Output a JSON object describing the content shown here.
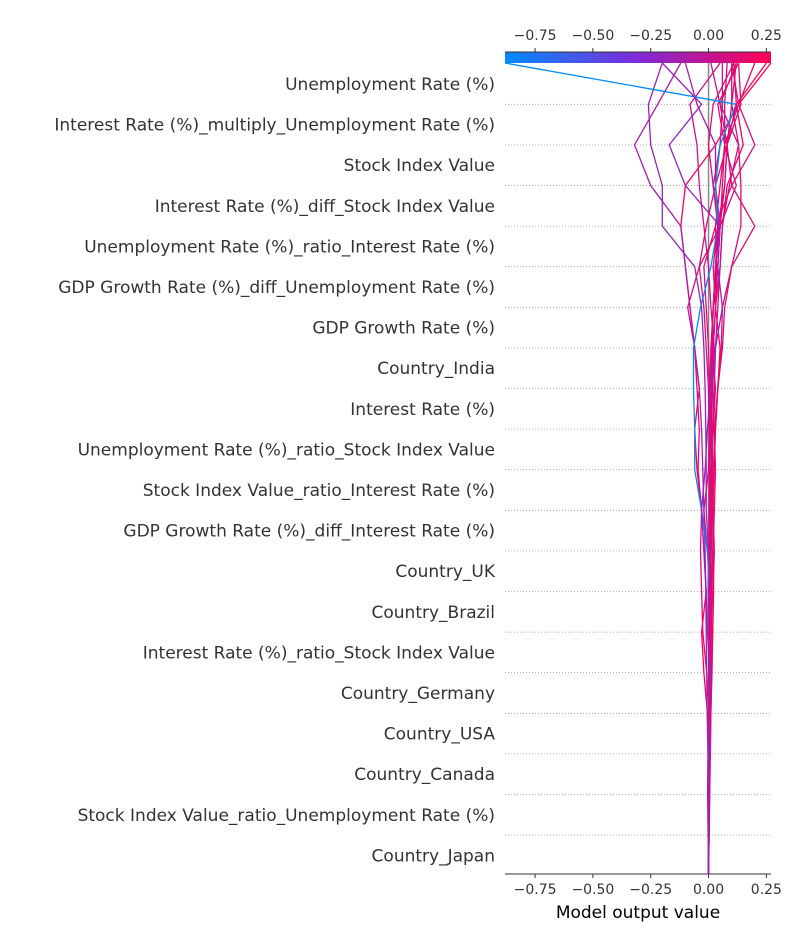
{
  "chart_data": {
    "type": "line",
    "title": "",
    "xlabel": "Model output value",
    "ylabel": "",
    "xlim": [
      -0.88,
      0.27
    ],
    "xticks": [
      -0.75,
      -0.5,
      -0.25,
      0.0,
      0.25
    ],
    "xtick_labels": [
      "−0.75",
      "−0.50",
      "−0.25",
      "0.00",
      "0.25"
    ],
    "base_value": 0.0,
    "features": [
      "Unemployment Rate (%)",
      "Interest Rate (%)_multiply_Unemployment Rate (%)",
      "Stock Index Value",
      "Interest Rate (%)_diff_Stock Index Value",
      "Unemployment Rate (%)_ratio_Interest Rate (%)",
      "GDP Growth Rate (%)_diff_Unemployment Rate (%)",
      "GDP Growth Rate (%)",
      "Country_India",
      "Interest Rate (%)",
      "Unemployment Rate (%)_ratio_Stock Index Value",
      "Stock Index Value_ratio_Interest Rate (%)",
      "GDP Growth Rate (%)_diff_Interest Rate (%)",
      "Country_UK",
      "Country_Brazil",
      "Interest Rate (%)_ratio_Stock Index Value",
      "Country_Germany",
      "Country_USA",
      "Country_Canada",
      "Stock Index Value_ratio_Unemployment Rate (%)",
      "Country_Japan"
    ],
    "colorbar": {
      "min": -0.88,
      "max": 0.27,
      "colors": [
        "#008bfb",
        "#7e2bd8",
        "#ff0052"
      ],
      "tick_labels": [
        "−0.75",
        "−0.50",
        "−0.25",
        "0.00",
        "0.25"
      ]
    },
    "series": [
      {
        "x": [
          0.0,
          0.002,
          0.005,
          0.008,
          0.01,
          0.015,
          0.018,
          0.02,
          0.025,
          0.02,
          0.018,
          0.015,
          0.01,
          0.02,
          0.03,
          0.04,
          0.05,
          0.06,
          0.07,
          0.07,
          0.08
        ]
      },
      {
        "x": [
          0.0,
          -0.002,
          0.003,
          0.006,
          0.01,
          0.012,
          0.018,
          0.022,
          0.02,
          0.025,
          0.03,
          0.025,
          0.04,
          0.05,
          0.03,
          0.05,
          0.06,
          0.08,
          0.15,
          0.12,
          0.25
        ]
      },
      {
        "x": [
          0.0,
          0.001,
          0.002,
          0.0,
          -0.005,
          -0.02,
          -0.03,
          -0.01,
          -0.02,
          -0.03,
          -0.05,
          -0.06,
          -0.04,
          -0.06,
          -0.08,
          -0.1,
          -0.12,
          -0.1,
          0.03,
          0.13,
          0.27
        ]
      },
      {
        "x": [
          0.0,
          -0.002,
          0.003,
          0.001,
          0.004,
          -0.008,
          -0.025,
          -0.03,
          -0.035,
          -0.03,
          -0.045,
          -0.04,
          -0.05,
          -0.06,
          -0.09,
          -0.04,
          0.05,
          0.12,
          0.07,
          0.04,
          0.13
        ]
      },
      {
        "x": [
          0.0,
          0.002,
          0.0,
          0.004,
          0.006,
          0.004,
          0.008,
          0.01,
          0.012,
          0.015,
          0.012,
          0.02,
          0.018,
          0.025,
          0.01,
          0.0,
          -0.02,
          -0.04,
          -0.05,
          -0.08,
          0.05
        ]
      },
      {
        "x": [
          0.0,
          0.003,
          0.005,
          0.002,
          0.008,
          0.006,
          0.012,
          0.01,
          0.02,
          0.018,
          0.025,
          0.03,
          0.04,
          0.055,
          0.06,
          0.1,
          0.14,
          0.14,
          0.13,
          0.1,
          0.12
        ]
      },
      {
        "x": [
          0.0,
          0.001,
          0.002,
          0.001,
          0.003,
          0.002,
          0.004,
          0.006,
          0.005,
          0.008,
          0.006,
          0.01,
          0.012,
          0.015,
          0.02,
          0.03,
          0.05,
          0.07,
          0.08,
          0.1,
          0.1
        ]
      },
      {
        "x": [
          0.0,
          0.001,
          0.001,
          0.002,
          0.001,
          0.003,
          0.002,
          0.004,
          0.003,
          0.002,
          0.005,
          0.004,
          0.006,
          0.01,
          0.02,
          0.04,
          0.05,
          0.03,
          0.03,
          -0.05,
          -0.1
        ]
      },
      {
        "x": [
          0.0,
          -0.002,
          -0.004,
          -0.003,
          -0.006,
          -0.008,
          -0.01,
          -0.012,
          -0.015,
          -0.02,
          -0.025,
          -0.03,
          -0.04,
          -0.06,
          -0.08,
          -0.1,
          -0.12,
          -0.25,
          -0.32,
          -0.22,
          -0.12
        ]
      },
      {
        "x": [
          0.0,
          0.002,
          0.004,
          0.006,
          0.008,
          0.01,
          0.012,
          0.015,
          0.018,
          0.02,
          0.015,
          0.01,
          0.005,
          0.0,
          -0.01,
          -0.02,
          0.03,
          0.1,
          0.2,
          0.13,
          0.1
        ]
      },
      {
        "x": [
          0.0,
          0.001,
          0.003,
          0.002,
          0.004,
          0.003,
          0.005,
          0.004,
          0.003,
          0.006,
          0.004,
          0.003,
          0.0,
          -0.01,
          -0.02,
          -0.04,
          -0.01,
          0.03,
          0.08,
          0.05,
          0.12
        ]
      },
      {
        "x": [
          0.0,
          0.001,
          0.0,
          0.001,
          0.002,
          0.001,
          0.0,
          -0.002,
          0.0,
          -0.01,
          -0.01,
          -0.012,
          -0.015,
          -0.02,
          -0.03,
          -0.06,
          -0.2,
          -0.2,
          -0.25,
          -0.26,
          -0.2
        ]
      },
      {
        "x": [
          0.0,
          0.0,
          0.001,
          0.002,
          0.001,
          0.002,
          0.004,
          0.003,
          0.005,
          0.006,
          0.007,
          0.005,
          0.01,
          0.012,
          0.02,
          0.035,
          0.03,
          0.05,
          0.07,
          0.13,
          0.2
        ]
      },
      {
        "x": [
          0.0,
          0.001,
          0.002,
          0.003,
          0.004,
          0.005,
          0.006,
          0.008,
          0.01,
          0.012,
          0.015,
          0.02,
          0.025,
          0.03,
          0.04,
          0.05,
          0.06,
          0.09,
          0.13,
          0.05,
          0.01
        ]
      },
      {
        "x": [
          0.0,
          -0.001,
          0.0,
          0.002,
          0.003,
          0.004,
          0.005,
          0.006,
          0.008,
          0.01,
          0.012,
          0.02,
          0.03,
          0.015,
          0.02,
          0.03,
          0.04,
          0.02,
          0.0,
          0.02,
          0.11
        ]
      },
      {
        "x": [
          0.0,
          0.001,
          0.002,
          0.003,
          0.004,
          0.006,
          0.005,
          0.008,
          -0.005,
          -0.02,
          0.0,
          0.005,
          0.01,
          0.015,
          0.02,
          0.03,
          0.045,
          0.02,
          0.05,
          0.06,
          0.06
        ]
      },
      {
        "x": [
          0.0,
          0.0,
          0.001,
          0.0,
          0.001,
          0.002,
          0.003,
          0.004,
          -0.005,
          -0.03,
          -0.06,
          -0.06,
          -0.065,
          -0.065,
          -0.035,
          0.01,
          0.04,
          0.03,
          0.05,
          0.12,
          -0.88
        ]
      },
      {
        "x": [
          0.0,
          0.001,
          0.001,
          0.002,
          0.002,
          0.003,
          0.004,
          0.005,
          0.006,
          0.01,
          0.02,
          0.03,
          0.04,
          0.06,
          0.07,
          0.1,
          0.2,
          0.1,
          0.08,
          0.12,
          0.11
        ]
      },
      {
        "x": [
          0.0,
          0.002,
          0.001,
          0.003,
          0.0,
          0.004,
          0.003,
          0.006,
          0.002,
          0.003,
          0.004,
          0.01,
          0.015,
          0.02,
          0.03,
          0.02,
          0.04,
          0.07,
          0.08,
          0.14,
          0.13
        ]
      },
      {
        "x": [
          0.0,
          0.001,
          0.0,
          0.002,
          0.004,
          0.005,
          -0.005,
          -0.01,
          -0.02,
          -0.03,
          -0.015,
          -0.005,
          0.01,
          0.03,
          0.06,
          0.04,
          0.05,
          -0.1,
          -0.17,
          -0.03,
          -0.2
        ]
      }
    ]
  }
}
